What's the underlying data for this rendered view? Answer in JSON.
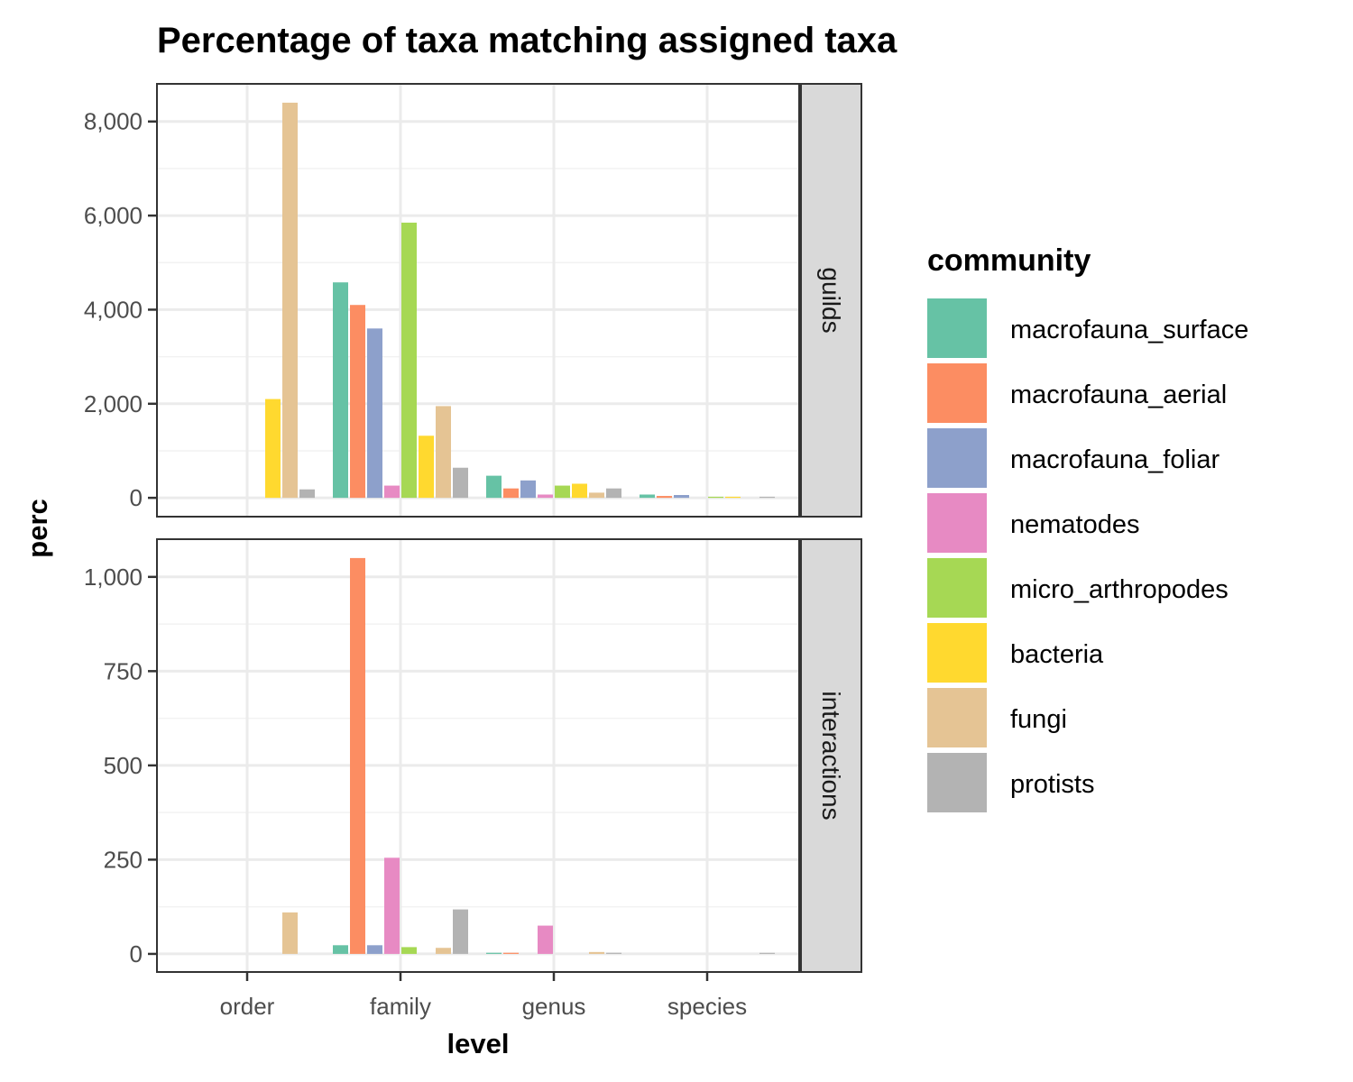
{
  "chart_data": {
    "type": "bar",
    "title": "Percentage of taxa matching assigned taxa",
    "xlabel": "level",
    "ylabel": "perc",
    "categories": [
      "order",
      "family",
      "genus",
      "species"
    ],
    "legend": {
      "title": "community",
      "placement": "right"
    },
    "series": [
      {
        "name": "macrofauna_surface",
        "color": "#66C2A5"
      },
      {
        "name": "macrofauna_aerial",
        "color": "#FC8D62"
      },
      {
        "name": "macrofauna_foliar",
        "color": "#8DA0CB"
      },
      {
        "name": "nematodes",
        "color": "#E78AC3"
      },
      {
        "name": "micro_arthropodes",
        "color": "#A6D854"
      },
      {
        "name": "bacteria",
        "color": "#FFD92F"
      },
      {
        "name": "fungi",
        "color": "#E5C494"
      },
      {
        "name": "protists",
        "color": "#B3B3B3"
      }
    ],
    "grid": true,
    "facets": [
      {
        "label": "guilds",
        "ylim": [
          -400,
          8800
        ],
        "yticks": [
          0,
          2000,
          4000,
          6000,
          8000
        ],
        "ytick_labels": [
          "0",
          "2,000",
          "4,000",
          "6,000",
          "8,000"
        ],
        "values": {
          "order": [
            null,
            null,
            null,
            null,
            null,
            2100,
            8400,
            180
          ],
          "family": [
            4580,
            4100,
            3600,
            260,
            5850,
            1320,
            1950,
            640
          ],
          "genus": [
            470,
            200,
            370,
            70,
            260,
            300,
            110,
            200
          ],
          "species": [
            70,
            40,
            60,
            null,
            15,
            20,
            null,
            20
          ]
        }
      },
      {
        "label": "interactions",
        "ylim": [
          -48,
          1100
        ],
        "yticks": [
          0,
          250,
          500,
          750,
          1000
        ],
        "ytick_labels": [
          "0",
          "250",
          "500",
          "750",
          "1,000"
        ],
        "values": {
          "order": [
            null,
            null,
            null,
            null,
            null,
            null,
            110,
            null
          ],
          "family": [
            23,
            1050,
            23,
            255,
            18,
            null,
            16,
            118
          ],
          "genus": [
            3,
            3,
            null,
            75,
            null,
            null,
            5,
            3
          ],
          "species": [
            null,
            null,
            null,
            null,
            null,
            null,
            null,
            2
          ]
        }
      }
    ]
  }
}
